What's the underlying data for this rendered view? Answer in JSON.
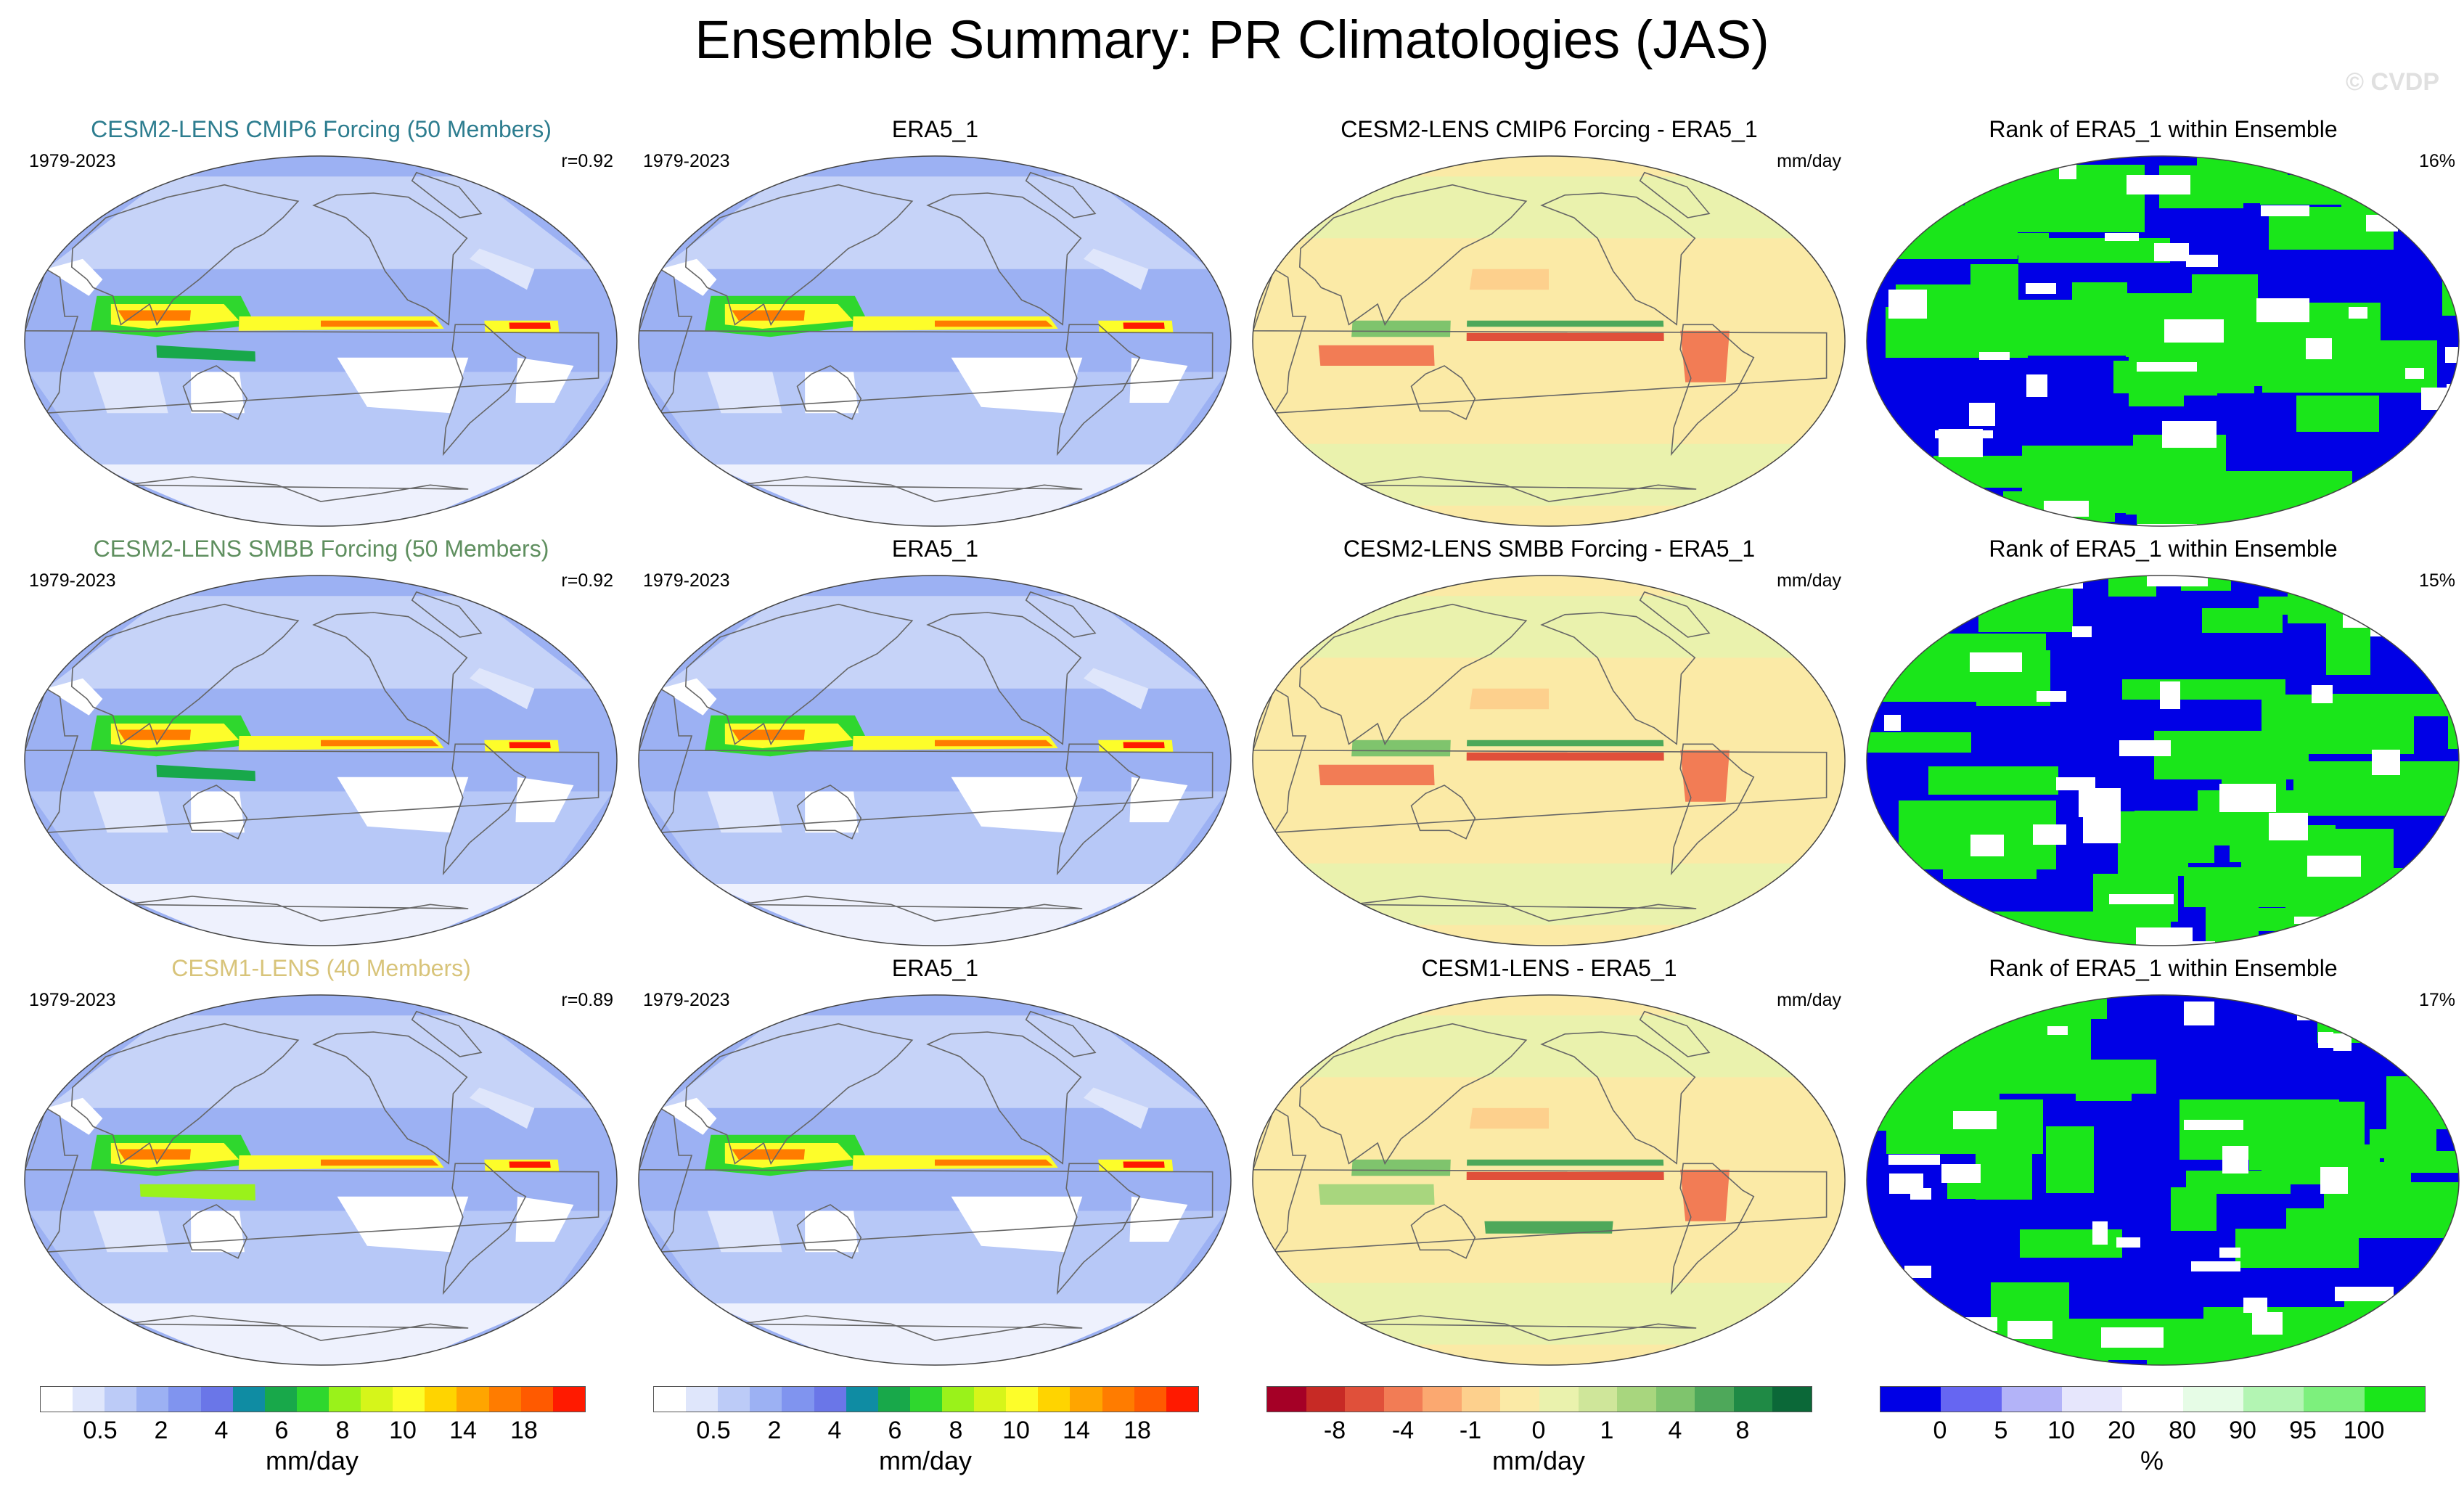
{
  "title": "Ensemble Summary: PR Climatologies (JAS)",
  "watermark": "© CVDP",
  "rows": [
    {
      "model": {
        "title": "CESM2-LENS CMIP6 Forcing (50 Members)",
        "period": "1979-2023",
        "corr": "r=0.92",
        "title_color": "#2d7d8f"
      },
      "obs": {
        "title": "ERA5_1",
        "period": "1979-2023"
      },
      "diff": {
        "title": "CESM2-LENS CMIP6 Forcing - ERA5_1",
        "units": "mm/day"
      },
      "rank": {
        "title": "Rank of ERA5_1 within Ensemble",
        "pct": "16%"
      }
    },
    {
      "model": {
        "title": "CESM2-LENS SMBB Forcing (50 Members)",
        "period": "1979-2023",
        "corr": "r=0.92",
        "title_color": "#5f8f5f"
      },
      "obs": {
        "title": "ERA5_1",
        "period": "1979-2023"
      },
      "diff": {
        "title": "CESM2-LENS SMBB Forcing - ERA5_1",
        "units": "mm/day"
      },
      "rank": {
        "title": "Rank of ERA5_1 within Ensemble",
        "pct": "15%"
      }
    },
    {
      "model": {
        "title": "CESM1-LENS (40 Members)",
        "period": "1979-2023",
        "corr": "r=0.89",
        "title_color": "#d8c47a"
      },
      "obs": {
        "title": "ERA5_1",
        "period": "1979-2023"
      },
      "diff": {
        "title": "CESM1-LENS - ERA5_1",
        "units": "mm/day"
      },
      "rank": {
        "title": "Rank of ERA5_1 within Ensemble",
        "pct": "17%"
      }
    }
  ],
  "chart_data": {
    "type": "heatmap",
    "panels_layout": "3 rows x 4 columns of global Robinson-projection maps",
    "colorbars": [
      {
        "label": "mm/day",
        "ticks": [
          "0.5",
          "2",
          "4",
          "6",
          "8",
          "10",
          "14",
          "18"
        ],
        "colors": [
          "#ffffff",
          "#dfe6fb",
          "#bccbf7",
          "#9cb1f3",
          "#8094ef",
          "#6a76e8",
          "#0f8ca3",
          "#18a84a",
          "#2fd72e",
          "#9af21a",
          "#d6f51a",
          "#fdfd2a",
          "#ffd400",
          "#ffa500",
          "#ff7c00",
          "#ff5a00",
          "#ff1a00"
        ]
      },
      {
        "label": "mm/day",
        "ticks": [
          "0.5",
          "2",
          "4",
          "6",
          "8",
          "10",
          "14",
          "18"
        ],
        "colors": [
          "#ffffff",
          "#dfe6fb",
          "#bccbf7",
          "#9cb1f3",
          "#8094ef",
          "#6a76e8",
          "#0f8ca3",
          "#18a84a",
          "#2fd72e",
          "#9af21a",
          "#d6f51a",
          "#fdfd2a",
          "#ffd400",
          "#ffa500",
          "#ff7c00",
          "#ff5a00",
          "#ff1a00"
        ]
      },
      {
        "label": "mm/day",
        "ticks": [
          "-8",
          "-4",
          "-1",
          "0",
          "1",
          "4",
          "8"
        ],
        "colors": [
          "#a50026",
          "#c72a25",
          "#e0503a",
          "#f27c55",
          "#fba870",
          "#fdd08d",
          "#fbeaa6",
          "#eaf2ad",
          "#cfe69a",
          "#a8d67e",
          "#7fc46d",
          "#4ea85a",
          "#1f8a45",
          "#0b6838"
        ]
      },
      {
        "label": "%",
        "ticks": [
          "0",
          "5",
          "10",
          "20",
          "80",
          "90",
          "95",
          "100"
        ],
        "colors": [
          "#0000e6",
          "#6666f2",
          "#b3b3f8",
          "#e6e6fc",
          "#ffffff",
          "#e6fce6",
          "#b3f5b3",
          "#7df07d",
          "#1ae61a"
        ]
      }
    ]
  }
}
